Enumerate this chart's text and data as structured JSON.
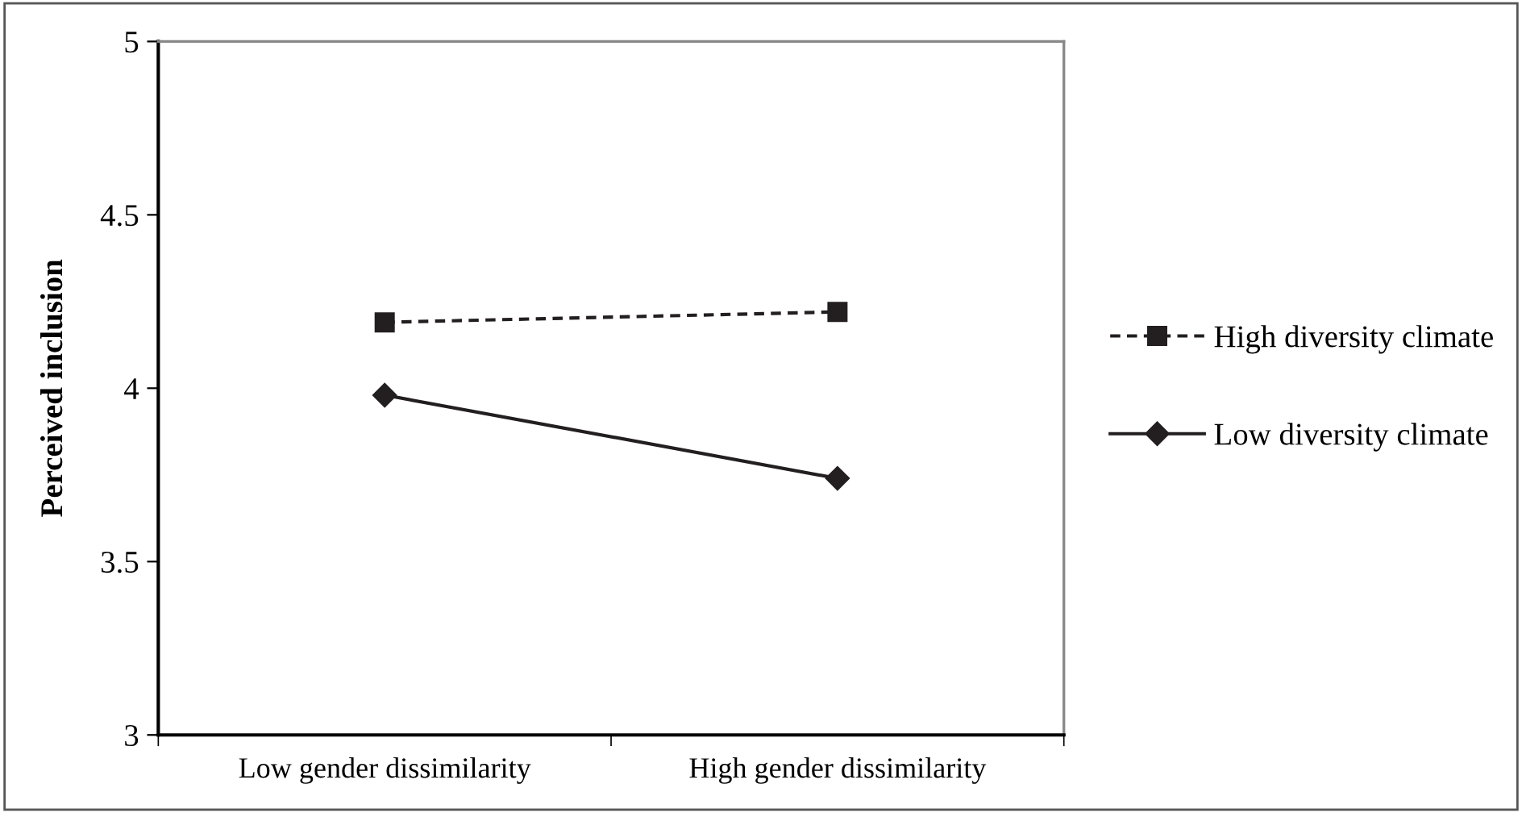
{
  "chart_data": {
    "type": "line",
    "ylabel": "Perceived inclusion",
    "categories": [
      "Low gender dissimilarity",
      "High gender dissimilarity"
    ],
    "series": [
      {
        "name": "High diversity climate",
        "color": "#231f20",
        "values": [
          4.19,
          4.22
        ],
        "marker": "square",
        "line_style": "dashed"
      },
      {
        "name": "Low diversity climate",
        "color": "#231f20",
        "values": [
          3.98,
          3.74
        ],
        "marker": "diamond",
        "line_style": "solid"
      }
    ],
    "ylim": [
      3,
      5
    ],
    "yticks": [
      3,
      3.5,
      4,
      4.5,
      5
    ],
    "grid": false,
    "legend": "right"
  }
}
